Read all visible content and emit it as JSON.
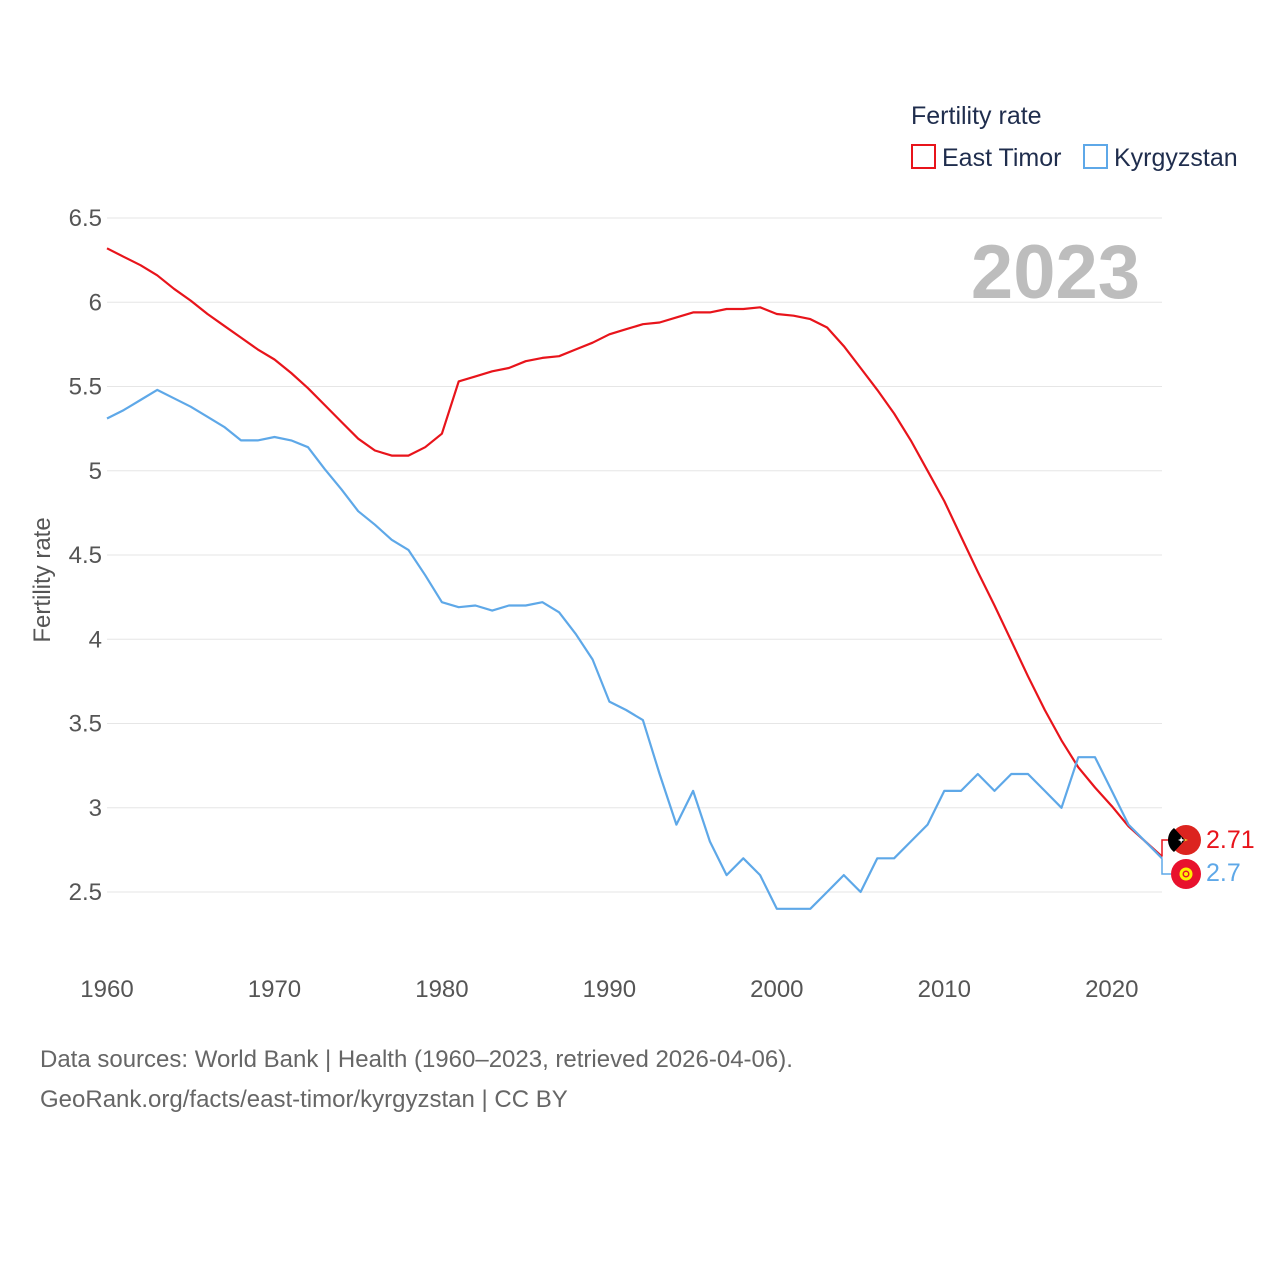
{
  "chart_data": {
    "type": "line",
    "title": "Fertility rate",
    "year_label": "2023",
    "ylabel": "Fertility rate",
    "xlabel": "",
    "xlim": [
      1960,
      2023
    ],
    "ylim": [
      2.0,
      6.5
    ],
    "yticks": [
      2.5,
      3,
      3.5,
      4,
      4.5,
      5,
      5.5,
      6,
      6.5
    ],
    "ytick_labels": [
      "2.5",
      "3",
      "3.5",
      "4",
      "4.5",
      "5",
      "5.5",
      "6",
      "6.5"
    ],
    "xticks": [
      1960,
      1970,
      1980,
      1990,
      2000,
      2010,
      2020
    ],
    "xtick_labels": [
      "1960",
      "1970",
      "1980",
      "1990",
      "2000",
      "2010",
      "2020"
    ],
    "grid": true,
    "legend_position": "top-right",
    "x": [
      1960,
      1961,
      1962,
      1963,
      1964,
      1965,
      1966,
      1967,
      1968,
      1969,
      1970,
      1971,
      1972,
      1973,
      1974,
      1975,
      1976,
      1977,
      1978,
      1979,
      1980,
      1981,
      1982,
      1983,
      1984,
      1985,
      1986,
      1987,
      1988,
      1989,
      1990,
      1991,
      1992,
      1993,
      1994,
      1995,
      1996,
      1997,
      1998,
      1999,
      2000,
      2001,
      2002,
      2003,
      2004,
      2005,
      2006,
      2007,
      2008,
      2009,
      2010,
      2011,
      2012,
      2013,
      2014,
      2015,
      2016,
      2017,
      2018,
      2019,
      2020,
      2021,
      2022,
      2023
    ],
    "series": [
      {
        "name": "East Timor",
        "color": "#e8141b",
        "end_value_label": "2.71",
        "values": [
          6.32,
          6.27,
          6.22,
          6.16,
          6.08,
          6.01,
          5.93,
          5.86,
          5.79,
          5.72,
          5.66,
          5.58,
          5.49,
          5.39,
          5.29,
          5.19,
          5.12,
          5.09,
          5.09,
          5.14,
          5.22,
          5.53,
          5.56,
          5.59,
          5.61,
          5.65,
          5.67,
          5.68,
          5.72,
          5.76,
          5.81,
          5.84,
          5.87,
          5.88,
          5.91,
          5.94,
          5.94,
          5.96,
          5.96,
          5.97,
          5.93,
          5.92,
          5.9,
          5.85,
          5.74,
          5.61,
          5.48,
          5.34,
          5.18,
          5.0,
          4.82,
          4.61,
          4.4,
          4.2,
          3.99,
          3.78,
          3.58,
          3.4,
          3.24,
          3.12,
          3.01,
          2.89,
          2.8,
          2.71
        ]
      },
      {
        "name": "Kyrgyzstan",
        "color": "#5ea8e8",
        "end_value_label": "2.7",
        "values": [
          5.31,
          5.36,
          5.42,
          5.48,
          5.43,
          5.38,
          5.32,
          5.26,
          5.18,
          5.18,
          5.2,
          5.18,
          5.14,
          5.01,
          4.89,
          4.76,
          4.68,
          4.59,
          4.53,
          4.38,
          4.22,
          4.19,
          4.2,
          4.17,
          4.2,
          4.2,
          4.22,
          4.16,
          4.03,
          3.88,
          3.63,
          3.58,
          3.52,
          3.2,
          2.9,
          3.1,
          2.8,
          2.6,
          2.7,
          2.6,
          2.4,
          2.4,
          2.4,
          2.5,
          2.6,
          2.5,
          2.7,
          2.7,
          2.8,
          2.9,
          3.1,
          3.1,
          3.2,
          3.1,
          3.2,
          3.2,
          3.1,
          3.0,
          3.3,
          3.3,
          3.1,
          2.9,
          2.8,
          2.7
        ]
      }
    ]
  },
  "footer": {
    "line1": "Data sources: World Bank | Health (1960–2023, retrieved 2026-04-06).",
    "line2": "GeoRank.org/facts/east-timor/kyrgyzstan | CC BY"
  },
  "flags": {
    "east_timor": "east-timor-flag-icon",
    "kyrgyzstan": "kyrgyzstan-flag-icon"
  }
}
